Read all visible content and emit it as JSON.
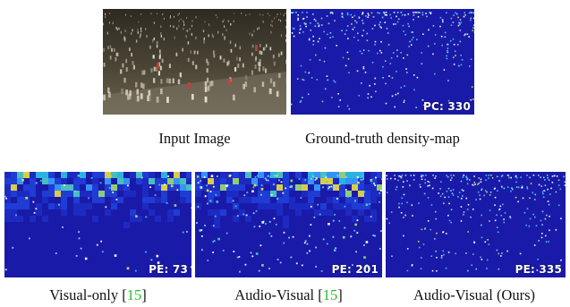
{
  "figure": {
    "top_row": [
      {
        "caption": "Input Image",
        "badge": ""
      },
      {
        "caption": "Ground-truth density-map",
        "badge": "PC: 330"
      }
    ],
    "bottom_row": [
      {
        "caption_text": "Visual-only [",
        "ref": "15",
        "caption_close": "]",
        "badge": "PE: 73"
      },
      {
        "caption_text": "Audio-Visual [",
        "ref": "15",
        "caption_close": "]",
        "badge": "PE: 201"
      },
      {
        "caption_text": "Audio-Visual (Ours)",
        "ref": "",
        "caption_close": "",
        "badge": "PE: 335"
      }
    ],
    "colors": {
      "density_background": "#1a1aa8",
      "citation": "#22c022"
    }
  }
}
